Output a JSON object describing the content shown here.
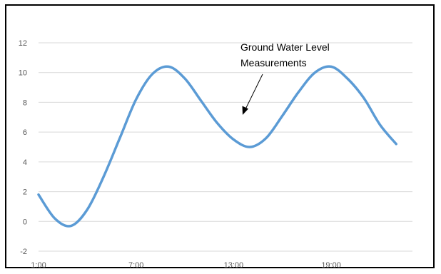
{
  "chart_data": {
    "type": "line",
    "title": "",
    "xlabel": "",
    "ylabel": "",
    "x_ticks": [
      "1:00",
      "7:00",
      "13:00",
      "19:00"
    ],
    "y_ticks": [
      -2,
      0,
      2,
      4,
      6,
      8,
      10,
      12
    ],
    "ylim": [
      -2,
      12
    ],
    "xlim_hours": [
      1,
      24
    ],
    "grid": "horizontal",
    "legend": "none",
    "series": [
      {
        "color": "#5B9BD5",
        "x_hours": [
          1,
          2,
          3,
          4,
          5,
          6,
          7,
          8,
          9,
          10,
          11,
          12,
          13,
          14,
          15,
          16,
          17,
          18,
          19,
          20,
          21,
          22,
          23
        ],
        "values": [
          1.8,
          0.2,
          -0.3,
          0.8,
          3.0,
          5.6,
          8.2,
          9.9,
          10.4,
          9.6,
          8.1,
          6.6,
          5.5,
          5.0,
          5.6,
          7.1,
          8.7,
          10.0,
          10.4,
          9.6,
          8.3,
          6.5,
          5.2
        ]
      }
    ],
    "annotation": {
      "lines": [
        "Ground Water Level",
        "Measurements"
      ]
    }
  }
}
